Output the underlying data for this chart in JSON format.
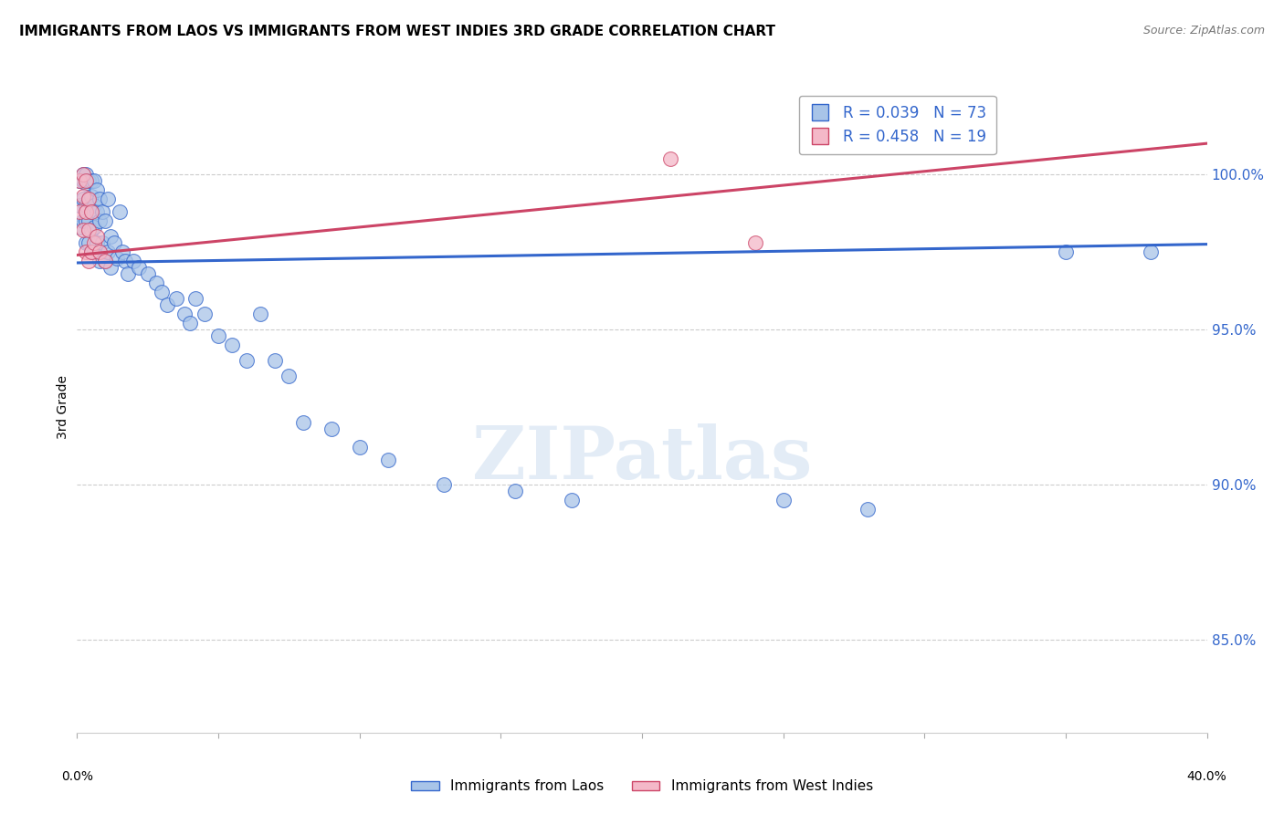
{
  "title": "IMMIGRANTS FROM LAOS VS IMMIGRANTS FROM WEST INDIES 3RD GRADE CORRELATION CHART",
  "source": "Source: ZipAtlas.com",
  "ylabel": "3rd Grade",
  "ytick_labels": [
    "85.0%",
    "90.0%",
    "95.0%",
    "100.0%"
  ],
  "ytick_values": [
    0.85,
    0.9,
    0.95,
    1.0
  ],
  "xlim": [
    0.0,
    0.4
  ],
  "ylim": [
    0.82,
    1.03
  ],
  "blue_color": "#a8c4e8",
  "pink_color": "#f4b8c8",
  "blue_line_color": "#3366cc",
  "pink_line_color": "#cc4466",
  "right_axis_color": "#3366cc",
  "legend_R_blue": "0.039",
  "legend_N_blue": "73",
  "legend_R_pink": "0.458",
  "legend_N_pink": "19",
  "legend_label_blue": "Immigrants from Laos",
  "legend_label_pink": "Immigrants from West Indies",
  "blue_scatter_x": [
    0.001,
    0.001,
    0.001,
    0.002,
    0.002,
    0.002,
    0.002,
    0.003,
    0.003,
    0.003,
    0.003,
    0.003,
    0.004,
    0.004,
    0.004,
    0.004,
    0.005,
    0.005,
    0.005,
    0.005,
    0.005,
    0.006,
    0.006,
    0.006,
    0.006,
    0.007,
    0.007,
    0.007,
    0.008,
    0.008,
    0.008,
    0.009,
    0.009,
    0.01,
    0.01,
    0.011,
    0.011,
    0.012,
    0.012,
    0.013,
    0.014,
    0.015,
    0.016,
    0.017,
    0.018,
    0.02,
    0.022,
    0.025,
    0.028,
    0.03,
    0.032,
    0.035,
    0.038,
    0.04,
    0.042,
    0.045,
    0.05,
    0.055,
    0.06,
    0.065,
    0.07,
    0.075,
    0.08,
    0.09,
    0.1,
    0.11,
    0.13,
    0.155,
    0.175,
    0.25,
    0.28,
    0.35,
    0.38
  ],
  "blue_scatter_y": [
    0.998,
    0.99,
    0.983,
    1.0,
    0.998,
    0.992,
    0.985,
    1.0,
    0.997,
    0.99,
    0.985,
    0.978,
    0.998,
    0.992,
    0.985,
    0.978,
    0.998,
    0.993,
    0.988,
    0.982,
    0.975,
    0.998,
    0.99,
    0.983,
    0.975,
    0.995,
    0.988,
    0.978,
    0.992,
    0.985,
    0.972,
    0.988,
    0.978,
    0.985,
    0.972,
    0.992,
    0.975,
    0.98,
    0.97,
    0.978,
    0.973,
    0.988,
    0.975,
    0.972,
    0.968,
    0.972,
    0.97,
    0.968,
    0.965,
    0.962,
    0.958,
    0.96,
    0.955,
    0.952,
    0.96,
    0.955,
    0.948,
    0.945,
    0.94,
    0.955,
    0.94,
    0.935,
    0.92,
    0.918,
    0.912,
    0.908,
    0.9,
    0.898,
    0.895,
    0.895,
    0.892,
    0.975,
    0.975
  ],
  "pink_scatter_x": [
    0.001,
    0.001,
    0.002,
    0.002,
    0.002,
    0.003,
    0.003,
    0.003,
    0.004,
    0.004,
    0.004,
    0.005,
    0.005,
    0.006,
    0.007,
    0.008,
    0.01,
    0.21,
    0.24
  ],
  "pink_scatter_y": [
    0.998,
    0.988,
    1.0,
    0.993,
    0.982,
    0.998,
    0.988,
    0.975,
    0.992,
    0.982,
    0.972,
    0.988,
    0.975,
    0.978,
    0.98,
    0.975,
    0.972,
    1.005,
    0.978
  ],
  "blue_trend_x": [
    0.0,
    0.4
  ],
  "blue_trend_y": [
    0.9715,
    0.9775
  ],
  "pink_trend_x": [
    0.0,
    0.4
  ],
  "pink_trend_y": [
    0.974,
    1.01
  ],
  "watermark_text": "ZIPatlas",
  "background_color": "#ffffff",
  "grid_color": "#cccccc",
  "title_fontsize": 11,
  "axis_label_fontsize": 10
}
